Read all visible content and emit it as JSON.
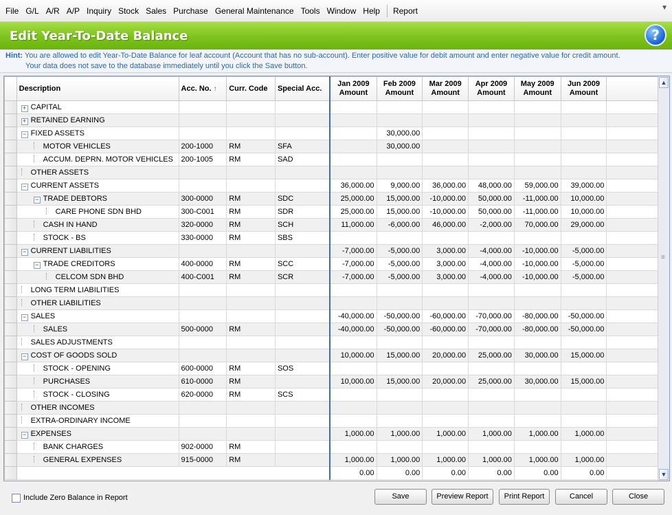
{
  "menu": [
    "File",
    "G/L",
    "A/R",
    "A/P",
    "Inquiry",
    "Stock",
    "Sales",
    "Purchase",
    "General Maintenance",
    "Tools",
    "Window",
    "Help",
    "Report"
  ],
  "title": "Edit Year-To-Date Balance",
  "hint": {
    "label": "Hint:",
    "line1": "You are allowed to edit Year-To-Date Balance for leaf account (Account that has no sub-account). Enter positive value for debit amount and enter negative value for credit amount.",
    "line2": "Your data does not save to the database immediately until you click the Save button."
  },
  "columns": {
    "description": "Description",
    "acc_no": "Acc. No.",
    "curr_code": "Curr. Code",
    "special_acc": "Special Acc.",
    "months": [
      {
        "month": "Jan 2009",
        "sub": "Amount"
      },
      {
        "month": "Feb 2009",
        "sub": "Amount"
      },
      {
        "month": "Mar 2009",
        "sub": "Amount"
      },
      {
        "month": "Apr 2009",
        "sub": "Amount"
      },
      {
        "month": "May 2009",
        "sub": "Amount"
      },
      {
        "month": "Jun 2009",
        "sub": "Amount"
      }
    ]
  },
  "rows": [
    {
      "desc": "CAPITAL",
      "level": 0,
      "tree": "+",
      "acc": "",
      "cur": "",
      "sp": "",
      "v": [
        "",
        "",
        "",
        "",
        "",
        ""
      ]
    },
    {
      "desc": "RETAINED EARNING",
      "level": 0,
      "tree": "+",
      "acc": "",
      "cur": "",
      "sp": "",
      "v": [
        "",
        "",
        "",
        "",
        "",
        ""
      ]
    },
    {
      "desc": "FIXED ASSETS",
      "level": 0,
      "tree": "-",
      "acc": "",
      "cur": "",
      "sp": "",
      "v": [
        "",
        "30,000.00",
        "",
        "",
        "",
        ""
      ]
    },
    {
      "desc": "MOTOR VEHICLES",
      "level": 1,
      "tree": "",
      "acc": "200-1000",
      "cur": "RM",
      "sp": "SFA",
      "v": [
        "",
        "30,000.00",
        "",
        "",
        "",
        ""
      ]
    },
    {
      "desc": "ACCUM. DEPRN. MOTOR VEHICLES",
      "level": 1,
      "tree": "",
      "acc": "200-1005",
      "cur": "RM",
      "sp": "SAD",
      "v": [
        "",
        "",
        "",
        "",
        "",
        ""
      ]
    },
    {
      "desc": "OTHER ASSETS",
      "level": 0,
      "tree": "",
      "acc": "",
      "cur": "",
      "sp": "",
      "v": [
        "",
        "",
        "",
        "",
        "",
        ""
      ]
    },
    {
      "desc": "CURRENT ASSETS",
      "level": 0,
      "tree": "-",
      "acc": "",
      "cur": "",
      "sp": "",
      "v": [
        "36,000.00",
        "9,000.00",
        "36,000.00",
        "48,000.00",
        "59,000.00",
        "39,000.00"
      ]
    },
    {
      "desc": "TRADE DEBTORS",
      "level": 1,
      "tree": "-",
      "acc": "300-0000",
      "cur": "RM",
      "sp": "SDC",
      "v": [
        "25,000.00",
        "15,000.00",
        "-10,000.00",
        "50,000.00",
        "-11,000.00",
        "10,000.00"
      ]
    },
    {
      "desc": "CARE PHONE SDN BHD",
      "level": 2,
      "tree": "",
      "acc": "300-C001",
      "cur": "RM",
      "sp": "SDR",
      "v": [
        "25,000.00",
        "15,000.00",
        "-10,000.00",
        "50,000.00",
        "-11,000.00",
        "10,000.00"
      ]
    },
    {
      "desc": "CASH IN HAND",
      "level": 1,
      "tree": "",
      "acc": "320-0000",
      "cur": "RM",
      "sp": "SCH",
      "v": [
        "11,000.00",
        "-6,000.00",
        "46,000.00",
        "-2,000.00",
        "70,000.00",
        "29,000.00"
      ]
    },
    {
      "desc": "STOCK - BS",
      "level": 1,
      "tree": "",
      "acc": "330-0000",
      "cur": "RM",
      "sp": "SBS",
      "v": [
        "",
        "",
        "",
        "",
        "",
        ""
      ]
    },
    {
      "desc": "CURRENT LIABILITIES",
      "level": 0,
      "tree": "-",
      "acc": "",
      "cur": "",
      "sp": "",
      "v": [
        "-7,000.00",
        "-5,000.00",
        "3,000.00",
        "-4,000.00",
        "-10,000.00",
        "-5,000.00"
      ]
    },
    {
      "desc": "TRADE CREDITORS",
      "level": 1,
      "tree": "-",
      "acc": "400-0000",
      "cur": "RM",
      "sp": "SCC",
      "v": [
        "-7,000.00",
        "-5,000.00",
        "3,000.00",
        "-4,000.00",
        "-10,000.00",
        "-5,000.00"
      ]
    },
    {
      "desc": "CELCOM SDN BHD",
      "level": 2,
      "tree": "",
      "acc": "400-C001",
      "cur": "RM",
      "sp": "SCR",
      "v": [
        "-7,000.00",
        "-5,000.00",
        "3,000.00",
        "-4,000.00",
        "-10,000.00",
        "-5,000.00"
      ]
    },
    {
      "desc": "LONG TERM LIABILITIES",
      "level": 0,
      "tree": "",
      "acc": "",
      "cur": "",
      "sp": "",
      "v": [
        "",
        "",
        "",
        "",
        "",
        ""
      ]
    },
    {
      "desc": "OTHER LIABILITIES",
      "level": 0,
      "tree": "",
      "acc": "",
      "cur": "",
      "sp": "",
      "v": [
        "",
        "",
        "",
        "",
        "",
        ""
      ]
    },
    {
      "desc": "SALES",
      "level": 0,
      "tree": "-",
      "acc": "",
      "cur": "",
      "sp": "",
      "v": [
        "-40,000.00",
        "-50,000.00",
        "-60,000.00",
        "-70,000.00",
        "-80,000.00",
        "-50,000.00"
      ]
    },
    {
      "desc": "SALES",
      "level": 1,
      "tree": "",
      "acc": "500-0000",
      "cur": "RM",
      "sp": "",
      "v": [
        "-40,000.00",
        "-50,000.00",
        "-60,000.00",
        "-70,000.00",
        "-80,000.00",
        "-50,000.00"
      ]
    },
    {
      "desc": "SALES ADJUSTMENTS",
      "level": 0,
      "tree": "",
      "acc": "",
      "cur": "",
      "sp": "",
      "v": [
        "",
        "",
        "",
        "",
        "",
        ""
      ]
    },
    {
      "desc": "COST OF GOODS SOLD",
      "level": 0,
      "tree": "-",
      "acc": "",
      "cur": "",
      "sp": "",
      "v": [
        "10,000.00",
        "15,000.00",
        "20,000.00",
        "25,000.00",
        "30,000.00",
        "15,000.00"
      ]
    },
    {
      "desc": "STOCK - OPENING",
      "level": 1,
      "tree": "",
      "acc": "600-0000",
      "cur": "RM",
      "sp": "SOS",
      "v": [
        "",
        "",
        "",
        "",
        "",
        ""
      ]
    },
    {
      "desc": "PURCHASES",
      "level": 1,
      "tree": "",
      "acc": "610-0000",
      "cur": "RM",
      "sp": "",
      "v": [
        "10,000.00",
        "15,000.00",
        "20,000.00",
        "25,000.00",
        "30,000.00",
        "15,000.00"
      ]
    },
    {
      "desc": "STOCK - CLOSING",
      "level": 1,
      "tree": "",
      "acc": "620-0000",
      "cur": "RM",
      "sp": "SCS",
      "v": [
        "",
        "",
        "",
        "",
        "",
        ""
      ]
    },
    {
      "desc": "OTHER INCOMES",
      "level": 0,
      "tree": "",
      "acc": "",
      "cur": "",
      "sp": "",
      "v": [
        "",
        "",
        "",
        "",
        "",
        ""
      ]
    },
    {
      "desc": "EXTRA-ORDINARY INCOME",
      "level": 0,
      "tree": "",
      "acc": "",
      "cur": "",
      "sp": "",
      "v": [
        "",
        "",
        "",
        "",
        "",
        ""
      ]
    },
    {
      "desc": "EXPENSES",
      "level": 0,
      "tree": "-",
      "acc": "",
      "cur": "",
      "sp": "",
      "v": [
        "1,000.00",
        "1,000.00",
        "1,000.00",
        "1,000.00",
        "1,000.00",
        "1,000.00"
      ]
    },
    {
      "desc": "BANK CHARGES",
      "level": 1,
      "tree": "",
      "acc": "902-0000",
      "cur": "RM",
      "sp": "",
      "v": [
        "",
        "",
        "",
        "",
        "",
        ""
      ]
    },
    {
      "desc": "GENERAL EXPENSES",
      "level": 1,
      "tree": "",
      "acc": "915-0000",
      "cur": "RM",
      "sp": "",
      "v": [
        "1,000.00",
        "1,000.00",
        "1,000.00",
        "1,000.00",
        "1,000.00",
        "1,000.00"
      ]
    }
  ],
  "totals": [
    "0.00",
    "0.00",
    "0.00",
    "0.00",
    "0.00",
    "0.00"
  ],
  "footer": {
    "include_zero_label": "Include Zero Balance in Report",
    "save": "Save",
    "preview": "Preview Report",
    "print": "Print Report",
    "cancel": "Cancel",
    "close": "Close"
  },
  "colors": {
    "title_green": "#7dc21c",
    "hint_blue": "#2b67b6",
    "divider_blue": "#3b6fb2"
  }
}
